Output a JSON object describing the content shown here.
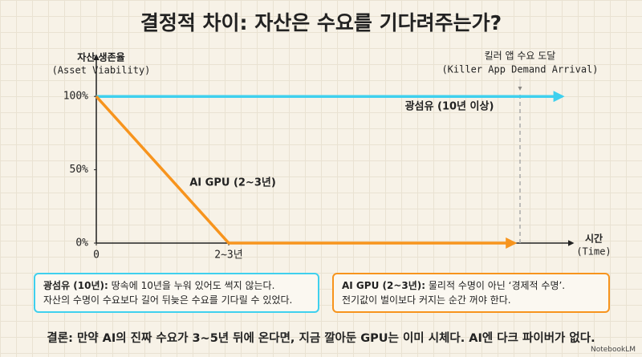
{
  "chart_data": {
    "type": "line",
    "title": "결정적 차이: 자산은 수요를 기다려주는가?",
    "ylabel": [
      "자산 생존율",
      "(Asset Viability)"
    ],
    "xlabel": [
      "시간",
      "(Time)"
    ],
    "xlim": [
      0,
      9
    ],
    "ylim": [
      0,
      128
    ],
    "xticks": [
      0,
      {
        "value": 2.5,
        "label": "2~3년"
      }
    ],
    "yticks": [
      {
        "value": 0,
        "label": "0%"
      },
      {
        "value": 50,
        "label": "50%"
      },
      {
        "value": 100,
        "label": "100%"
      }
    ],
    "series": [
      {
        "name": "광섬유 (10년 이상)",
        "color": "#3fd0ee",
        "x": [
          0,
          8.8
        ],
        "values": [
          100,
          100
        ]
      },
      {
        "name": "AI GPU (2~3년)",
        "color": "#f7941d",
        "x": [
          0,
          2.5,
          7.9
        ],
        "values": [
          100,
          0,
          0
        ]
      }
    ],
    "annotations": [
      {
        "x": 8,
        "text": [
          "킬러 앱 수요 도달",
          "(Killer App Demand Arrival)"
        ]
      }
    ]
  },
  "notes": [
    {
      "label": "광섬유 (10년):",
      "lines": [
        "땅속에 10년을 누워 있어도 썩지 않는다.",
        "자산의 수명이 수요보다 길어 뒤늦은 수요를 기다릴 수 있었다."
      ]
    },
    {
      "label": "AI GPU (2~3년):",
      "lines": [
        "물리적 수명이 아닌 ‘경제적 수명’.",
        "전기값이 벌이보다 커지는 순간 꺼야 한다."
      ]
    }
  ],
  "conclusion": {
    "label": "결론:",
    "text": "만약 AI의 진짜 수요가 3~5년 뒤에 온다면, 지금 깔아둔 GPU는 이미 시체다. AI엔 다크 파이버가 없다."
  },
  "footer": "NotebookLM"
}
